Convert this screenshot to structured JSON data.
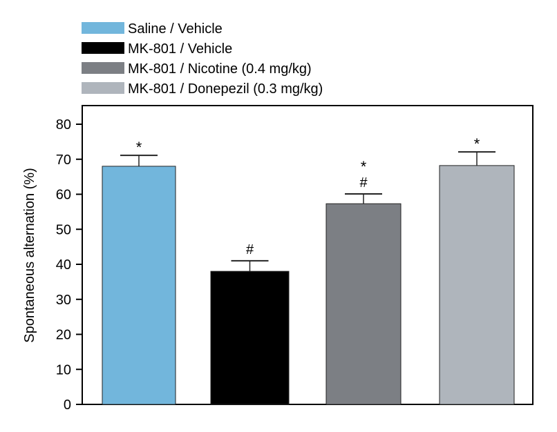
{
  "chart_data": {
    "type": "bar",
    "title": "",
    "xlabel": "",
    "ylabel": "Spontaneous alternation (%)",
    "ylim": [
      0,
      80
    ],
    "yticks": [
      0,
      10,
      20,
      30,
      40,
      50,
      60,
      70,
      80
    ],
    "grid": false,
    "legend_placement": "top-left, above plot",
    "categories": [
      "Saline / Vehicle",
      "MK-801 / Vehicle",
      "MK-801 / Nicotine (0.4 mg/kg)",
      "MK-801 / Donepezil (0.3 mg/kg)"
    ],
    "values": [
      68.0,
      38.0,
      57.3,
      68.2
    ],
    "error_upper": [
      71.1,
      41.0,
      60.1,
      72.1
    ],
    "colors": [
      "#72b6dc",
      "#000000",
      "#7c7f84",
      "#afb5bc"
    ],
    "annotations": [
      [
        "*"
      ],
      [
        "#"
      ],
      [
        "*",
        "#"
      ],
      [
        "*"
      ]
    ]
  }
}
